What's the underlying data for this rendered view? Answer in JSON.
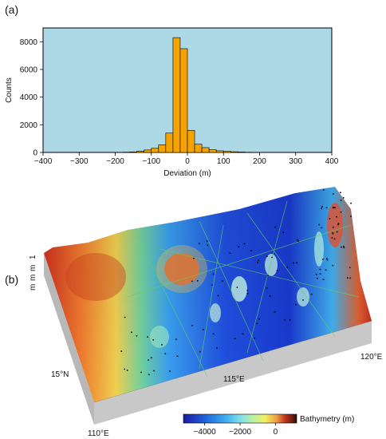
{
  "panels": {
    "a_label": "(a)",
    "b_label": "(b)"
  },
  "chart_data": [
    {
      "type": "bar",
      "subtype": "histogram",
      "xlabel": "Deviation (m)",
      "ylabel": "Counts",
      "xlim": [
        -400,
        400
      ],
      "ylim": [
        0,
        9000
      ],
      "xticks": [
        -400,
        -300,
        -200,
        -100,
        0,
        100,
        200,
        300,
        400
      ],
      "yticks": [
        0,
        2000,
        4000,
        6000,
        8000
      ],
      "bin_width": 20,
      "bin_starts": [
        -200,
        -180,
        -160,
        -140,
        -120,
        -100,
        -80,
        -60,
        -40,
        -20,
        0,
        20,
        40,
        60,
        80,
        100,
        120,
        140,
        160,
        180
      ],
      "values": [
        10,
        20,
        40,
        100,
        180,
        300,
        550,
        1400,
        8300,
        7500,
        1600,
        600,
        350,
        200,
        120,
        80,
        50,
        30,
        15,
        8
      ],
      "bar_color": "#f5a300",
      "background_color": "#add8e6",
      "grid": false
    },
    {
      "type": "heatmap",
      "subtype": "3d-bathymetry-surface",
      "colorbar_label": "Bathymetry (m)",
      "colorbar_ticks": [
        -4000,
        -2000,
        0
      ],
      "colorbar_range": [
        -5200,
        1200
      ],
      "colormap": [
        "#1a1aa0",
        "#1f5fd8",
        "#3fb0f0",
        "#7fe0e8",
        "#bff0a0",
        "#f0f060",
        "#f0a040",
        "#c03020",
        "#702010",
        "#2a0a05"
      ],
      "axis_labels": {
        "lon_left": "110°E",
        "lon_mid": "115°E",
        "lon_right": "120°E",
        "lat": "15°N"
      },
      "side_tick_labels": [
        "1",
        "m",
        "m",
        "m"
      ]
    }
  ]
}
